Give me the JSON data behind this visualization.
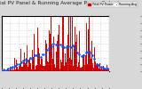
{
  "title": "Total PV Panel & Running Average Power Output",
  "bg_color": "#d8d8d8",
  "plot_bg": "#ffffff",
  "bar_color": "#cc0000",
  "avg_color": "#0055ff",
  "grid_color": "#aaaaaa",
  "ylim": [
    0,
    4000
  ],
  "ytick_vals": [
    0,
    500,
    1000,
    1500,
    2000,
    2500,
    3000,
    3500,
    4000
  ],
  "ytick_labels": [
    "0",
    "500",
    "1k",
    "1.5k",
    "2k",
    "2.5k",
    "3k",
    "3.5k",
    "4k"
  ],
  "title_fontsize": 4.2,
  "tick_fontsize": 2.6,
  "legend_entries": [
    "Total PV Power",
    "Running Avg"
  ],
  "legend_colors": [
    "#cc0000",
    "#0055ff"
  ]
}
